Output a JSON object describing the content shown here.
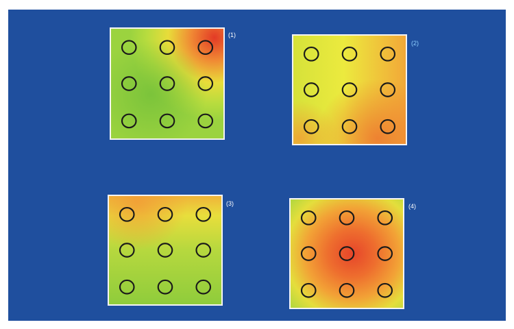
{
  "plates": [
    {
      "label": "(1)"
    },
    {
      "label": "(2)"
    },
    {
      "label": "(3)"
    },
    {
      "label": "(4)"
    }
  ],
  "colors": {
    "background": "#1f4f9e",
    "green": "#8ccc3c",
    "yellow": "#e0e63a",
    "orange": "#f2a33a",
    "red": "#e8502a",
    "circle_outline": "#1a1a1a"
  }
}
